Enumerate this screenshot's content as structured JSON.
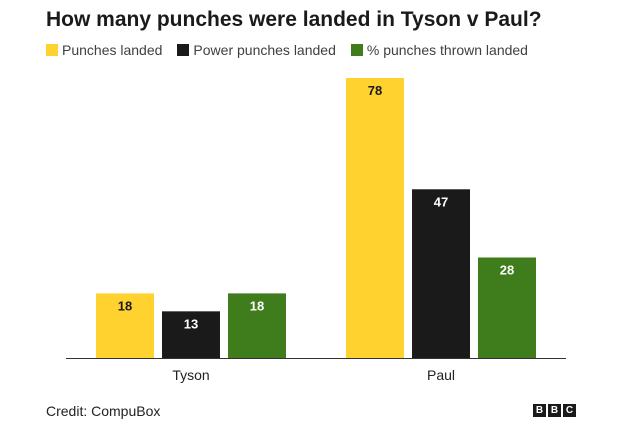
{
  "title": "How many punches were landed in Tyson v Paul?",
  "legend": [
    {
      "label": "Punches landed",
      "color": "#FFD230"
    },
    {
      "label": "Power punches landed",
      "color": "#1A1A1A"
    },
    {
      "label": "% punches thrown landed",
      "color": "#3E7C1C"
    }
  ],
  "chart_data": {
    "type": "bar",
    "title": "How many punches were landed in Tyson v Paul?",
    "categories": [
      "Tyson",
      "Paul"
    ],
    "series": [
      {
        "name": "Punches landed",
        "values": [
          18,
          78
        ],
        "color": "#FFD230"
      },
      {
        "name": "Power punches landed",
        "values": [
          13,
          47
        ],
        "color": "#1A1A1A"
      },
      {
        "name": "% punches thrown landed",
        "values": [
          18,
          28
        ],
        "color": "#3E7C1C"
      }
    ],
    "ylim": [
      0,
      80
    ],
    "grid": false,
    "legend_position": "top-left",
    "data_labels": true
  },
  "footer": {
    "credit": "Credit: CompuBox",
    "logo_letters": [
      "B",
      "B",
      "C"
    ]
  }
}
